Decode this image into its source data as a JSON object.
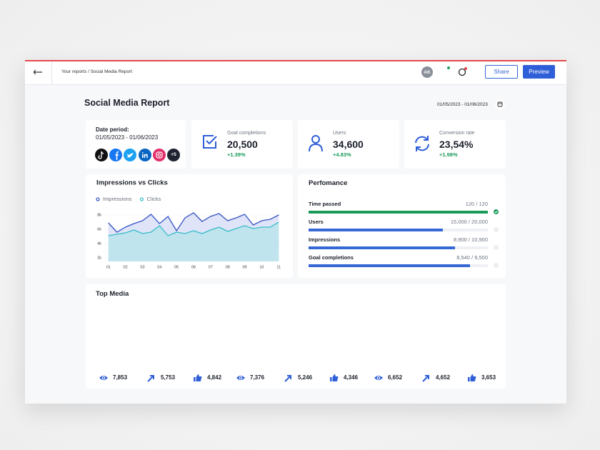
{
  "header": {
    "breadcrumb": "Your reports / Social Media Report",
    "avatar": "AK",
    "share": "Share",
    "preview": "Preview"
  },
  "title": "Social Media Report",
  "date_range": "01/05/2023 - 01/06/2023",
  "date_card": {
    "label": "Date period:",
    "value": "01/05/2023 - 01/06/2023",
    "more": "+5"
  },
  "stats": [
    {
      "label": "Goal completions",
      "value": "20,500",
      "change": "+1.39%"
    },
    {
      "label": "Users",
      "value": "34,600",
      "change": "+4.83%"
    },
    {
      "label": "Conversion rate",
      "value": "23,54%",
      "change": "+1.98%"
    }
  ],
  "chart_data": {
    "type": "area",
    "title": "Impressions vs Clicks",
    "x": [
      1,
      1.5,
      2,
      2.5,
      3,
      3.5,
      4,
      4.5,
      5,
      5.5,
      6,
      6.5,
      7,
      7.5,
      8,
      8.5,
      9,
      9.5,
      10,
      10.5,
      11
    ],
    "xlim": [
      0.8,
      11.2
    ],
    "xticks": [
      {
        "value": 1,
        "label": "01"
      },
      {
        "value": 2,
        "label": "02"
      },
      {
        "value": 3,
        "label": "03"
      },
      {
        "value": 4,
        "label": "04"
      },
      {
        "value": 5,
        "label": "05"
      },
      {
        "value": 6,
        "label": "06"
      },
      {
        "value": 7,
        "label": "07"
      },
      {
        "value": 8,
        "label": "08"
      },
      {
        "value": 9,
        "label": "09"
      },
      {
        "value": 10,
        "label": "10"
      },
      {
        "value": 11,
        "label": "11"
      }
    ],
    "ylim": [
      1500,
      8500
    ],
    "yticks": [
      {
        "value": 2000,
        "label": "2k"
      },
      {
        "value": 4000,
        "label": "4k"
      },
      {
        "value": 6000,
        "label": "6k"
      },
      {
        "value": 8000,
        "label": "8k"
      }
    ],
    "grid": true,
    "series": [
      {
        "name": "Impressions",
        "color": "#3554c4",
        "fill": "#dfe4f8",
        "values": [
          6900,
          5600,
          6300,
          6800,
          7200,
          8100,
          6800,
          7800,
          5800,
          7600,
          8300,
          7100,
          7800,
          8200,
          7200,
          7600,
          8100,
          6600,
          7200,
          7400,
          8000
        ]
      },
      {
        "name": "Clicks",
        "color": "#36bcc6",
        "fill": "#bfe4ee",
        "values": [
          5100,
          5300,
          5500,
          5900,
          5400,
          5600,
          6500,
          5100,
          5600,
          5400,
          5800,
          5400,
          5900,
          6300,
          5700,
          6100,
          6500,
          6100,
          6300,
          6300,
          7000
        ]
      }
    ]
  },
  "performance": {
    "title": "Perfomance",
    "rows": [
      {
        "label": "Time passed",
        "value_label": "120 / 120",
        "value": 120,
        "max": 120,
        "color": "#1a9a5a",
        "done": true
      },
      {
        "label": "Users",
        "value_label": "15,000 / 20,000",
        "value": 15000,
        "max": 20000,
        "color": "#3568d4",
        "done": false
      },
      {
        "label": "Impressions",
        "value_label": "8,900 / 10,900",
        "value": 8900,
        "max": 10900,
        "color": "#3568d4",
        "done": false
      },
      {
        "label": "Goal completions",
        "value_label": "8,540 / 9,500",
        "value": 8540,
        "max": 9500,
        "color": "#3568d4",
        "done": false
      }
    ]
  },
  "top_media": {
    "title": "Top Media",
    "items": [
      {
        "icon": "eye",
        "value": "7,853"
      },
      {
        "icon": "share",
        "value": "5,753"
      },
      {
        "icon": "like",
        "value": "4,842"
      },
      {
        "icon": "eye",
        "value": "7,376"
      },
      {
        "icon": "share",
        "value": "5,246"
      },
      {
        "icon": "like",
        "value": "4,346"
      },
      {
        "icon": "eye",
        "value": "6,652"
      },
      {
        "icon": "share",
        "value": "4,652"
      },
      {
        "icon": "like",
        "value": "3,653"
      }
    ]
  }
}
